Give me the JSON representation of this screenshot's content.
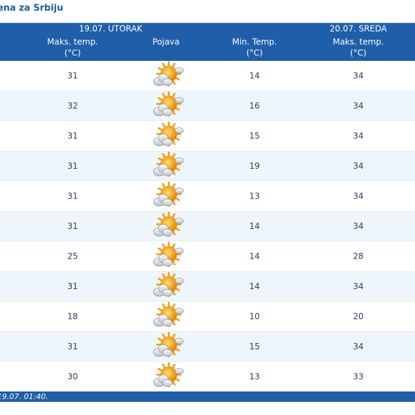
{
  "header": {
    "title": "ena za Srbiju"
  },
  "table": {
    "day1": "19.07. UTORAK",
    "day2": "20.07. SREDA",
    "columns": [
      [
        "Maks. temp.",
        "(°C)"
      ],
      [
        "Pojava"
      ],
      [
        "Min. Temp.",
        "(°C)"
      ],
      [
        "Maks. temp.",
        "(°C)"
      ]
    ],
    "rows": [
      [
        31,
        14,
        34
      ],
      [
        32,
        16,
        34
      ],
      [
        31,
        15,
        34
      ],
      [
        31,
        19,
        34
      ],
      [
        31,
        13,
        34
      ],
      [
        31,
        14,
        34
      ],
      [
        25,
        14,
        28
      ],
      [
        31,
        14,
        34
      ],
      [
        18,
        10,
        20
      ],
      [
        31,
        15,
        34
      ],
      [
        30,
        13,
        33
      ]
    ]
  },
  "footer": {
    "updated": "19.07. 01:40."
  }
}
